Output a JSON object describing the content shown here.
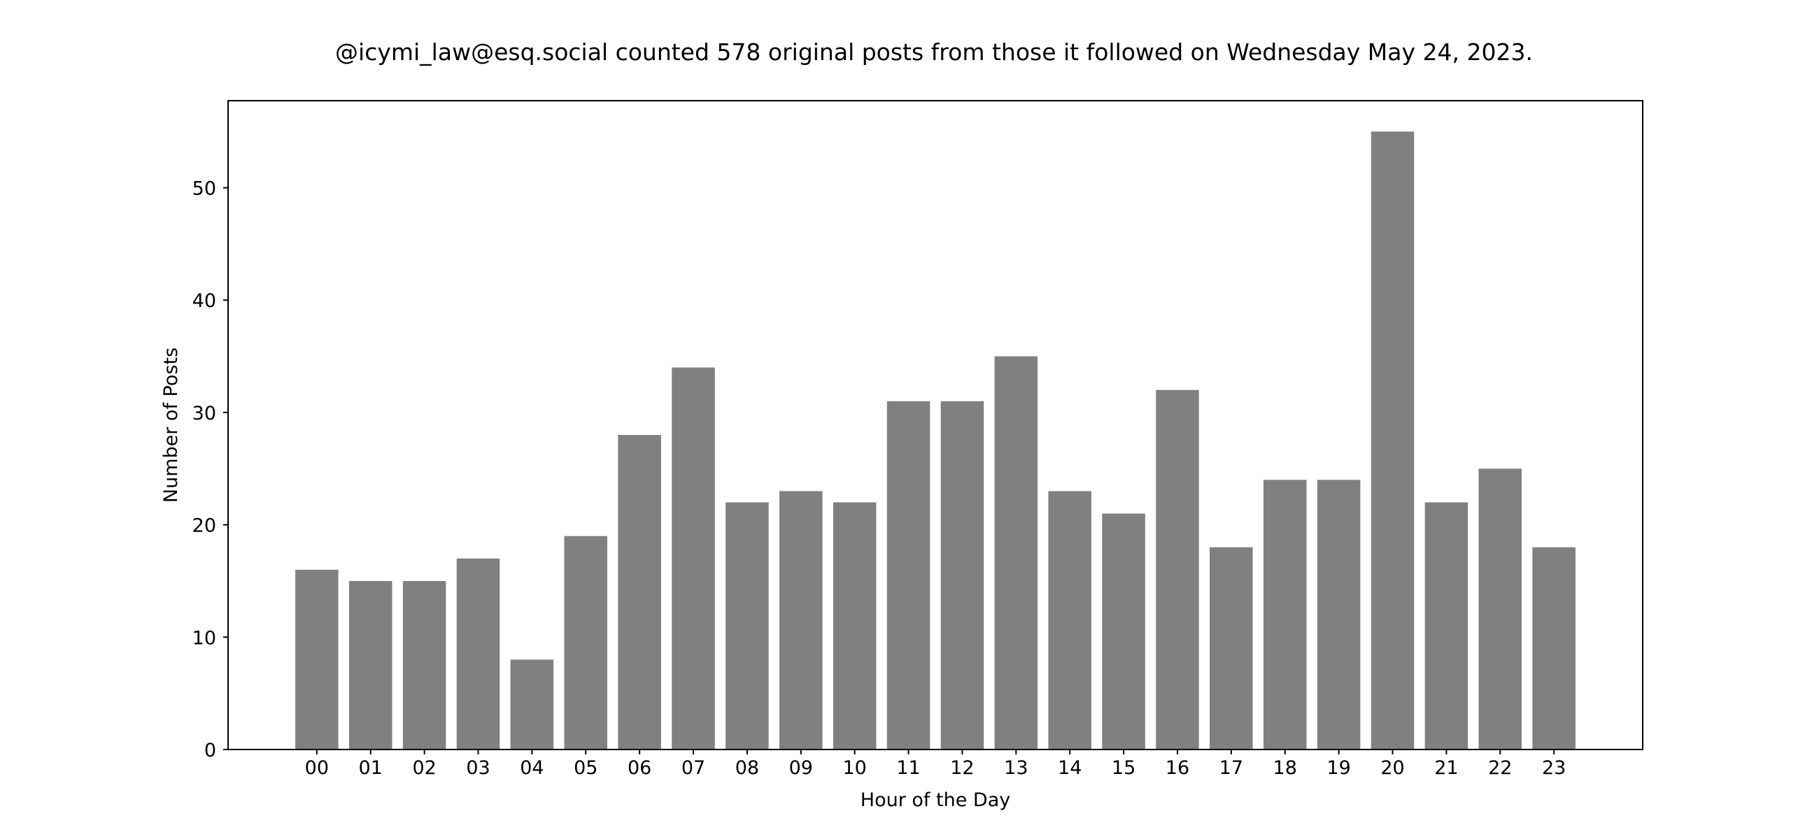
{
  "chart_data": {
    "type": "bar",
    "title": "@icymi_law@esq.social counted 578 original posts from those it followed on Wednesday May 24, 2023.",
    "xlabel": "Hour of the Day",
    "ylabel": "Number of Posts",
    "categories": [
      "00",
      "01",
      "02",
      "03",
      "04",
      "05",
      "06",
      "07",
      "08",
      "09",
      "10",
      "11",
      "12",
      "13",
      "14",
      "15",
      "16",
      "17",
      "18",
      "19",
      "20",
      "21",
      "22",
      "23"
    ],
    "values": [
      16,
      15,
      15,
      17,
      8,
      19,
      28,
      34,
      22,
      23,
      22,
      31,
      31,
      35,
      23,
      21,
      32,
      18,
      24,
      24,
      55,
      22,
      25,
      18
    ],
    "ylim": [
      0,
      57.75
    ],
    "yticks": [
      0,
      10,
      20,
      30,
      40,
      50
    ],
    "grid": false,
    "bar_color": "#808080"
  }
}
